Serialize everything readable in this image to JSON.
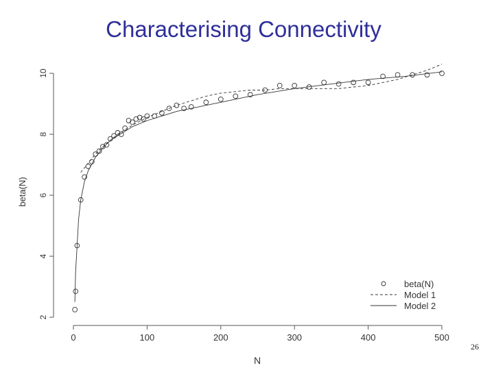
{
  "slide": {
    "title": "Characterising Connectivity",
    "page_number": "26"
  },
  "chart_data": {
    "type": "scatter",
    "title": "",
    "xlabel": "N",
    "ylabel": "beta(N)",
    "xlim": [
      0,
      500
    ],
    "ylim": [
      2,
      10
    ],
    "x_ticks": [
      "0",
      "100",
      "200",
      "300",
      "400",
      "500"
    ],
    "y_ticks": [
      "2",
      "4",
      "6",
      "8",
      "10"
    ],
    "grid": false,
    "legend_position": "bottom-right",
    "series": [
      {
        "name": "beta(N)",
        "style": "points",
        "x": [
          2,
          3,
          5,
          10,
          15,
          20,
          25,
          30,
          35,
          40,
          45,
          50,
          55,
          60,
          65,
          70,
          75,
          80,
          85,
          90,
          95,
          100,
          110,
          120,
          130,
          140,
          150,
          160,
          180,
          200,
          220,
          240,
          260,
          280,
          300,
          320,
          340,
          360,
          380,
          400,
          420,
          440,
          460,
          480,
          500
        ],
        "y": [
          2.25,
          2.85,
          4.35,
          5.85,
          6.6,
          6.95,
          7.1,
          7.35,
          7.45,
          7.6,
          7.65,
          7.85,
          7.95,
          8.05,
          8.0,
          8.2,
          8.45,
          8.4,
          8.5,
          8.55,
          8.5,
          8.6,
          8.6,
          8.7,
          8.85,
          8.95,
          8.85,
          8.9,
          9.05,
          9.15,
          9.25,
          9.3,
          9.45,
          9.6,
          9.6,
          9.55,
          9.7,
          9.65,
          9.7,
          9.7,
          9.9,
          9.95,
          9.95,
          9.95,
          10.0
        ]
      },
      {
        "name": "Model 1",
        "style": "dashed",
        "x": [
          10,
          20,
          30,
          40,
          50,
          60,
          80,
          100,
          120,
          140,
          160,
          180,
          200,
          220,
          240,
          260,
          280,
          300,
          320,
          340,
          360,
          380,
          400,
          420,
          440,
          460,
          480,
          500
        ],
        "y": [
          6.75,
          7.05,
          7.35,
          7.6,
          7.8,
          8.0,
          8.3,
          8.55,
          8.75,
          8.95,
          9.1,
          9.25,
          9.35,
          9.4,
          9.45,
          9.45,
          9.5,
          9.5,
          9.5,
          9.5,
          9.5,
          9.55,
          9.6,
          9.7,
          9.8,
          9.95,
          10.1,
          10.3
        ]
      },
      {
        "name": "Model 2",
        "style": "solid",
        "x": [
          2,
          3,
          5,
          7,
          10,
          15,
          20,
          30,
          40,
          50,
          60,
          70,
          80,
          100,
          120,
          140,
          160,
          180,
          200,
          250,
          300,
          350,
          400,
          450,
          500
        ],
        "y": [
          2.5,
          3.5,
          4.35,
          5.2,
          5.85,
          6.45,
          6.8,
          7.25,
          7.55,
          7.8,
          7.95,
          8.1,
          8.25,
          8.45,
          8.6,
          8.75,
          8.85,
          8.95,
          9.05,
          9.3,
          9.5,
          9.65,
          9.8,
          9.9,
          10.05
        ]
      }
    ]
  }
}
